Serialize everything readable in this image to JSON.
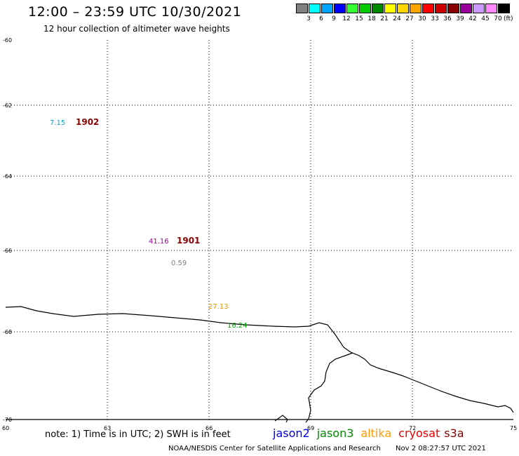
{
  "header": {
    "title": "12:00 – 23:59 UTC 10/30/2021",
    "subtitle": "12 hour collection of altimeter wave heights"
  },
  "legend": {
    "colors": [
      "#808080",
      "#00ffff",
      "#00a5ff",
      "#0000ff",
      "#33ff33",
      "#00cc00",
      "#008800",
      "#ffff00",
      "#ffd700",
      "#ffa500",
      "#ff0000",
      "#cc0000",
      "#880000",
      "#990099",
      "#cc99ff",
      "#ff88ff",
      "#000000"
    ],
    "labels": [
      "3",
      "6",
      "9",
      "12",
      "15",
      "18",
      "21",
      "24",
      "27",
      "30",
      "33",
      "36",
      "39",
      "42",
      "45",
      "70"
    ],
    "unit": "(ft)"
  },
  "map": {
    "lon_ticks": [
      "60",
      "63",
      "66",
      "69",
      "72",
      "75"
    ],
    "lat_ticks": [
      "-60",
      "-62",
      "-64",
      "-66",
      "-68",
      "-70"
    ],
    "readings": [
      {
        "value": "7.15",
        "color": "#00a5c8"
      },
      {
        "value": "41.16",
        "color": "#990099"
      },
      {
        "value": "0.59",
        "color": "#808080"
      },
      {
        "value": "27.13",
        "color": "#e69500"
      },
      {
        "value": "16.24",
        "color": "#00aa00"
      }
    ],
    "dates": [
      {
        "value": "1902",
        "color": "#880000"
      },
      {
        "value": "1901",
        "color": "#880000"
      }
    ]
  },
  "footer": {
    "note": "note: 1) Time is in UTC; 2) SWH is in feet",
    "satellites": [
      {
        "name": "jason2",
        "color": "#0000ee"
      },
      {
        "name": "jason3",
        "color": "#008800"
      },
      {
        "name": "altika",
        "color": "#ff9900"
      },
      {
        "name": "cryosat",
        "color": "#ee0000"
      },
      {
        "name": "s3a",
        "color": "#880000"
      }
    ],
    "credit": "NOAA/NESDIS Center for Satellite Applications and Research",
    "timestamp": "Nov 2 08:27:57 UTC 2021"
  }
}
